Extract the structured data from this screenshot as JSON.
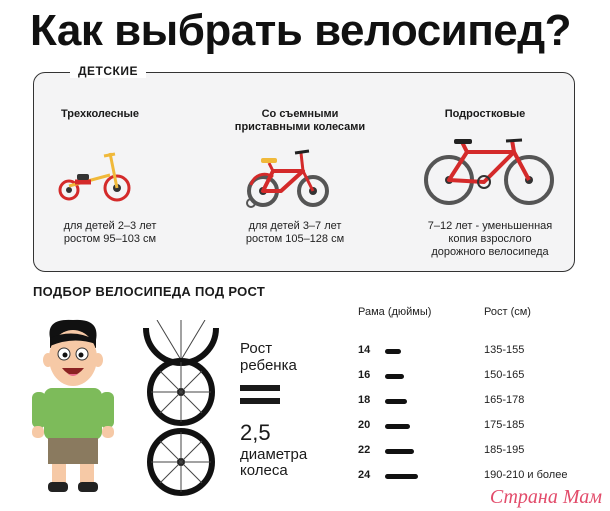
{
  "title": "Как выбрать велосипед?",
  "kids_panel": {
    "heading": "ДЕТСКИЕ",
    "items": [
      {
        "label": "Трехколесные",
        "desc_line1": "для детей 2–3 лет",
        "desc_line2": "ростом 95–103 см"
      },
      {
        "label_line1": "Со съемными",
        "label_line2": "приставными колесами",
        "desc_line1": "для детей 3–7 лет",
        "desc_line2": "ростом 105–128 см"
      },
      {
        "label": "Подростковые",
        "desc_line1": "7–12 лет - уменьшенная",
        "desc_line2": "копия взрослого",
        "desc_line3": "дорожного велосипеда"
      }
    ]
  },
  "size_section": {
    "heading": "ПОДБОР ВЕЛОСИПЕДА ПОД РОСТ",
    "formula": {
      "line1": "Рост",
      "line2": "ребенка",
      "number": "2,5",
      "line3": "диаметра",
      "line4": "колеса"
    },
    "col_frame": "Рама (дюймы)",
    "col_height": "Рост (см)",
    "rows": [
      {
        "frame": "14",
        "height": "135-155",
        "bar_fraction": 0.45
      },
      {
        "frame": "16",
        "height": "150-165",
        "bar_fraction": 0.55
      },
      {
        "frame": "18",
        "height": "165-178",
        "bar_fraction": 0.62
      },
      {
        "frame": "20",
        "height": "175-185",
        "bar_fraction": 0.72
      },
      {
        "frame": "22",
        "height": "185-195",
        "bar_fraction": 0.82
      },
      {
        "frame": "24",
        "height": "190-210 и более",
        "bar_fraction": 0.95
      }
    ]
  },
  "watermark": "Страна Мам",
  "colors": {
    "red": "#d42a2a",
    "yellow": "#f0b93a",
    "shirt": "#7dbb5a",
    "skin": "#f6c9a6",
    "dark": "#1a1a1a"
  }
}
